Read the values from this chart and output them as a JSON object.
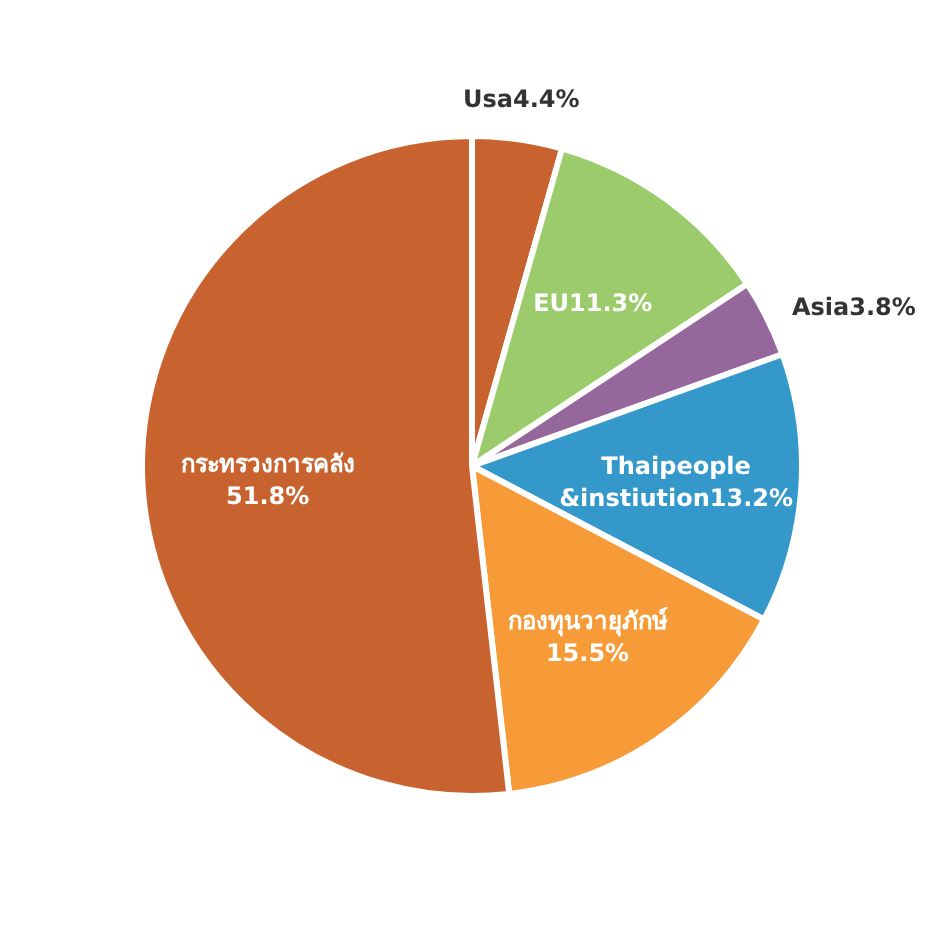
{
  "chart_data": {
    "type": "pie",
    "categories": [
      "Usa",
      "EU",
      "Asia",
      "Thaipeople &instiution",
      "กองทุนวายุภักษ์",
      "กระทรวงการคลัง"
    ],
    "values": [
      4.4,
      11.3,
      3.8,
      13.2,
      15.5,
      51.8
    ],
    "value_labels": [
      "4.4%",
      "11.3%",
      "3.8%",
      "13.2%",
      "15.5%",
      "51.8%"
    ],
    "colors": [
      "#c8632f",
      "#9bcb6a",
      "#96679c",
      "#3598cb",
      "#f79a38",
      "#c8632f"
    ]
  }
}
